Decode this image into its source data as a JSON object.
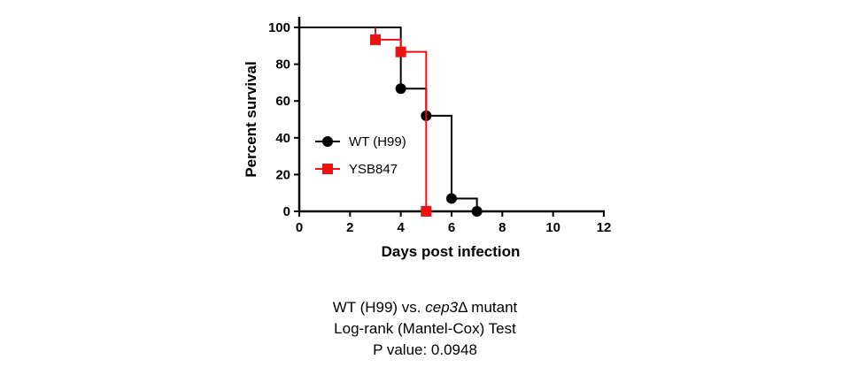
{
  "chart_data": {
    "type": "line",
    "subtype": "survival-step",
    "xlabel": "Days post infection",
    "ylabel": "Percent survival",
    "xlim": [
      0,
      12
    ],
    "ylim": [
      0,
      100
    ],
    "x_ticks": [
      0,
      2,
      4,
      6,
      8,
      10,
      12
    ],
    "y_ticks": [
      0,
      20,
      40,
      60,
      80,
      100
    ],
    "grid": false,
    "legend_position": "left-center",
    "series": [
      {
        "name": "WT (H99)",
        "color": "#000000",
        "marker": "circle",
        "steps": [
          [
            0,
            100
          ],
          [
            4,
            100
          ],
          [
            4,
            66.7
          ],
          [
            5,
            66.7
          ],
          [
            5,
            52
          ],
          [
            6,
            52
          ],
          [
            6,
            7
          ],
          [
            7,
            7
          ],
          [
            7,
            0
          ],
          [
            12,
            0
          ]
        ],
        "points": [
          [
            4,
            66.7
          ],
          [
            5,
            52
          ],
          [
            6,
            7
          ],
          [
            7,
            0
          ]
        ]
      },
      {
        "name": "YSB847",
        "color": "#ee1111",
        "marker": "square",
        "steps": [
          [
            3,
            100
          ],
          [
            3,
            93.3
          ],
          [
            4,
            93.3
          ],
          [
            4,
            86.7
          ],
          [
            5,
            86.7
          ],
          [
            5,
            0
          ]
        ],
        "points": [
          [
            3,
            93.3
          ],
          [
            4,
            86.7
          ],
          [
            5,
            0
          ]
        ]
      }
    ]
  },
  "caption": {
    "line1_prefix": "WT (H99) vs. ",
    "line1_italic": "cep3",
    "line1_suffix": "Δ mutant",
    "line2": "Log-rank (Mantel-Cox) Test",
    "line3": "P value: 0.0948"
  }
}
